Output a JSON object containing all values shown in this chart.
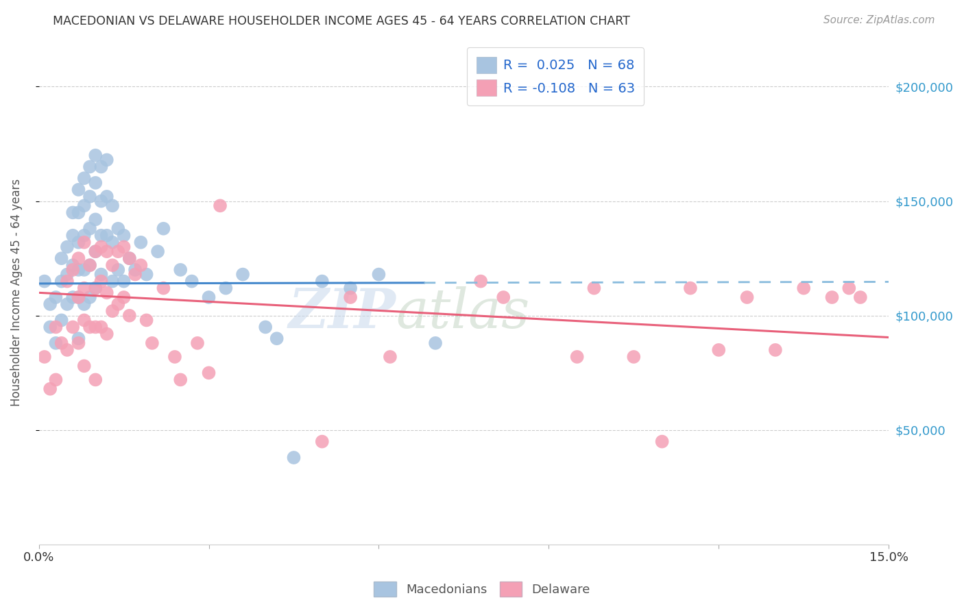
{
  "title": "MACEDONIAN VS DELAWARE HOUSEHOLDER INCOME AGES 45 - 64 YEARS CORRELATION CHART",
  "source": "Source: ZipAtlas.com",
  "ylabel_label": "Householder Income Ages 45 - 64 years",
  "legend_macedonian": "R =  0.025   N = 68",
  "legend_delaware": "R = -0.108   N = 63",
  "macedonian_color": "#a8c4e0",
  "delaware_color": "#f4a0b5",
  "trend_macedonian_solid_color": "#4488cc",
  "trend_macedonian_dash_color": "#88bbdd",
  "trend_delaware_color": "#e8607a",
  "background_color": "#ffffff",
  "xlim": [
    0.0,
    0.15
  ],
  "ylim": [
    0,
    220000
  ],
  "mac_x": [
    0.001,
    0.002,
    0.002,
    0.003,
    0.003,
    0.004,
    0.004,
    0.004,
    0.005,
    0.005,
    0.005,
    0.006,
    0.006,
    0.006,
    0.006,
    0.007,
    0.007,
    0.007,
    0.007,
    0.007,
    0.007,
    0.008,
    0.008,
    0.008,
    0.008,
    0.008,
    0.009,
    0.009,
    0.009,
    0.009,
    0.009,
    0.01,
    0.01,
    0.01,
    0.01,
    0.01,
    0.011,
    0.011,
    0.011,
    0.011,
    0.012,
    0.012,
    0.012,
    0.013,
    0.013,
    0.013,
    0.014,
    0.014,
    0.015,
    0.015,
    0.016,
    0.017,
    0.018,
    0.019,
    0.021,
    0.022,
    0.025,
    0.027,
    0.03,
    0.033,
    0.036,
    0.04,
    0.042,
    0.045,
    0.05,
    0.055,
    0.06,
    0.07
  ],
  "mac_y": [
    115000,
    105000,
    95000,
    108000,
    88000,
    125000,
    115000,
    98000,
    130000,
    118000,
    105000,
    145000,
    135000,
    122000,
    108000,
    155000,
    145000,
    132000,
    120000,
    108000,
    90000,
    160000,
    148000,
    135000,
    120000,
    105000,
    165000,
    152000,
    138000,
    122000,
    108000,
    170000,
    158000,
    142000,
    128000,
    112000,
    165000,
    150000,
    135000,
    118000,
    168000,
    152000,
    135000,
    148000,
    132000,
    115000,
    138000,
    120000,
    135000,
    115000,
    125000,
    120000,
    132000,
    118000,
    128000,
    138000,
    120000,
    115000,
    108000,
    112000,
    118000,
    95000,
    90000,
    38000,
    115000,
    112000,
    118000,
    88000
  ],
  "del_x": [
    0.001,
    0.002,
    0.003,
    0.003,
    0.004,
    0.005,
    0.005,
    0.006,
    0.006,
    0.007,
    0.007,
    0.007,
    0.008,
    0.008,
    0.008,
    0.008,
    0.009,
    0.009,
    0.01,
    0.01,
    0.01,
    0.01,
    0.011,
    0.011,
    0.011,
    0.012,
    0.012,
    0.012,
    0.013,
    0.013,
    0.014,
    0.014,
    0.015,
    0.015,
    0.016,
    0.016,
    0.017,
    0.018,
    0.019,
    0.02,
    0.022,
    0.024,
    0.025,
    0.028,
    0.03,
    0.032,
    0.05,
    0.055,
    0.062,
    0.078,
    0.082,
    0.095,
    0.098,
    0.105,
    0.11,
    0.115,
    0.12,
    0.125,
    0.13,
    0.135,
    0.14,
    0.143,
    0.145
  ],
  "del_y": [
    82000,
    68000,
    95000,
    72000,
    88000,
    115000,
    85000,
    120000,
    95000,
    125000,
    108000,
    88000,
    132000,
    112000,
    98000,
    78000,
    122000,
    95000,
    128000,
    112000,
    95000,
    72000,
    130000,
    115000,
    95000,
    128000,
    110000,
    92000,
    122000,
    102000,
    128000,
    105000,
    130000,
    108000,
    125000,
    100000,
    118000,
    122000,
    98000,
    88000,
    112000,
    82000,
    72000,
    88000,
    75000,
    148000,
    45000,
    108000,
    82000,
    115000,
    108000,
    82000,
    112000,
    82000,
    45000,
    112000,
    85000,
    108000,
    85000,
    112000,
    108000,
    112000,
    108000
  ],
  "mac_trend_x0": 0.0,
  "mac_trend_x_solid_end": 0.068,
  "mac_trend_x_dash_end": 0.15,
  "mac_trend_y_at_0": 114000,
  "mac_trend_slope": 5000,
  "del_trend_x0": 0.0,
  "del_trend_x_end": 0.15,
  "del_trend_y_at_0": 110000,
  "del_trend_slope": -130000
}
